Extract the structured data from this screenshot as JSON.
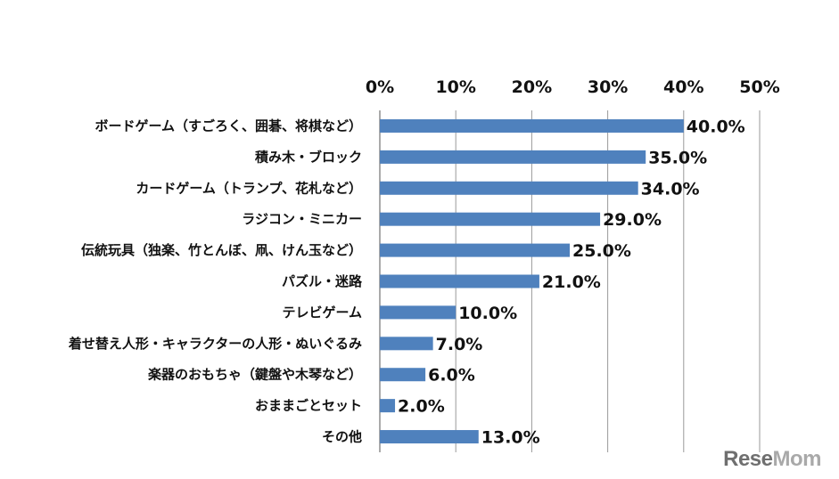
{
  "chart_data": {
    "type": "bar",
    "orientation": "horizontal",
    "categories": [
      "ボードゲーム（すごろく、囲碁、将棋など）",
      "積み木・ブロック",
      "カードゲーム（トランプ、花札など）",
      "ラジコン・ミニカー",
      "伝統玩具（独楽、竹とんぼ、凧、けん玉など）",
      "パズル・迷路",
      "テレビゲーム",
      "着せ替え人形・キャラクターの人形・ぬいぐるみ",
      "楽器のおもちゃ（鍵盤や木琴など）",
      "おままごとセット",
      "その他"
    ],
    "values": [
      40.0,
      35.0,
      34.0,
      29.0,
      25.0,
      21.0,
      10.0,
      7.0,
      6.0,
      2.0,
      13.0
    ],
    "value_labels": [
      "40.0%",
      "35.0%",
      "34.0%",
      "29.0%",
      "25.0%",
      "21.0%",
      "10.0%",
      "7.0%",
      "6.0%",
      "2.0%",
      "13.0%"
    ],
    "xlim": [
      0,
      50
    ],
    "x_ticks": [
      0,
      10,
      20,
      30,
      40,
      50
    ],
    "x_tick_labels": [
      "0%",
      "10%",
      "20%",
      "30%",
      "40%",
      "50%"
    ],
    "x_axis_position": "top",
    "grid": true,
    "bar_color": "#4f81bd",
    "gridline_color": "#9a9a9a",
    "title": "",
    "xlabel": "",
    "ylabel": ""
  },
  "watermark": {
    "part1": "Rese",
    "part2": "Mom"
  }
}
